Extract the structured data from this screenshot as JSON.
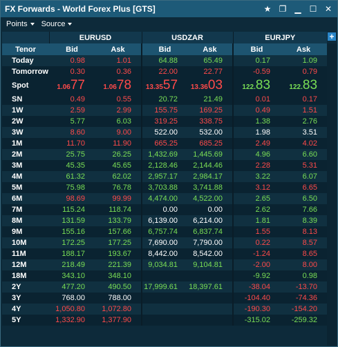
{
  "window": {
    "title": "FX Forwards - World Forex Plus [GTS]"
  },
  "toolbar": {
    "points": "Points",
    "source": "Source"
  },
  "pairs": [
    "EURUSD",
    "USDZAR",
    "EURJPY"
  ],
  "headers": {
    "tenor": "Tenor",
    "bid": "Bid",
    "ask": "Ask"
  },
  "spot": {
    "label": "Spot",
    "eurusd": {
      "bid_small": "1.06",
      "bid_big": "77",
      "ask_small": "1.06",
      "ask_big": "78"
    },
    "usdzar": {
      "bid_small": "13.35",
      "bid_big": "57",
      "ask_small": "13.36",
      "ask_big": "03"
    },
    "eurjpy": {
      "bid_small": "122.",
      "bid_big": "83",
      "ask_small": "122.",
      "ask_big": "83"
    }
  },
  "rows": [
    {
      "tenor": "Today",
      "c": [
        "0.98",
        "1.01",
        "64.88",
        "65.49",
        "0.17",
        "1.09"
      ],
      "k": [
        "r",
        "r",
        "g",
        "g",
        "g",
        "g"
      ]
    },
    {
      "tenor": "Tomorrow",
      "c": [
        "0.30",
        "0.36",
        "22.00",
        "22.77",
        "-0.59",
        "0.79"
      ],
      "k": [
        "r",
        "r",
        "r",
        "r",
        "r",
        "r"
      ]
    },
    {
      "tenor": "SN",
      "c": [
        "0.49",
        "0.55",
        "20.72",
        "21.49",
        "0.01",
        "0.17"
      ],
      "k": [
        "r",
        "r",
        "g",
        "g",
        "r",
        "r"
      ]
    },
    {
      "tenor": "1W",
      "c": [
        "2.59",
        "2.99",
        "155.75",
        "169.25",
        "0.49",
        "1.51"
      ],
      "k": [
        "r",
        "r",
        "r",
        "r",
        "r",
        "r"
      ]
    },
    {
      "tenor": "2W",
      "c": [
        "5.77",
        "6.03",
        "319.25",
        "338.75",
        "1.38",
        "2.76"
      ],
      "k": [
        "g",
        "g",
        "r",
        "r",
        "g",
        "g"
      ]
    },
    {
      "tenor": "3W",
      "c": [
        "8.60",
        "9.00",
        "522.00",
        "532.00",
        "1.98",
        "3.51"
      ],
      "k": [
        "r",
        "r",
        "w",
        "w",
        "w",
        "w"
      ]
    },
    {
      "tenor": "1M",
      "c": [
        "11.70",
        "11.90",
        "665.25",
        "685.25",
        "2.49",
        "4.02"
      ],
      "k": [
        "r",
        "r",
        "r",
        "r",
        "r",
        "r"
      ]
    },
    {
      "tenor": "2M",
      "c": [
        "25.75",
        "26.25",
        "1,432.69",
        "1,445.69",
        "4.96",
        "6.60"
      ],
      "k": [
        "g",
        "g",
        "g",
        "g",
        "g",
        "g"
      ]
    },
    {
      "tenor": "3M",
      "c": [
        "45.35",
        "45.65",
        "2,128.46",
        "2,144.46",
        "2.28",
        "5.31"
      ],
      "k": [
        "g",
        "g",
        "g",
        "g",
        "r",
        "r"
      ]
    },
    {
      "tenor": "4M",
      "c": [
        "61.32",
        "62.02",
        "2,957.17",
        "2,984.17",
        "3.22",
        "6.07"
      ],
      "k": [
        "g",
        "g",
        "g",
        "g",
        "g",
        "g"
      ]
    },
    {
      "tenor": "5M",
      "c": [
        "75.98",
        "76.78",
        "3,703.88",
        "3,741.88",
        "3.12",
        "6.65"
      ],
      "k": [
        "g",
        "g",
        "g",
        "g",
        "r",
        "r"
      ]
    },
    {
      "tenor": "6M",
      "c": [
        "98.69",
        "99.99",
        "4,474.00",
        "4,522.00",
        "2.65",
        "6.50"
      ],
      "k": [
        "r",
        "r",
        "g",
        "g",
        "g",
        "g"
      ]
    },
    {
      "tenor": "7M",
      "c": [
        "115.24",
        "118.74",
        "0.00",
        "0.00",
        "2.62",
        "7.66"
      ],
      "k": [
        "g",
        "g",
        "w",
        "w",
        "g",
        "g"
      ]
    },
    {
      "tenor": "8M",
      "c": [
        "131.59",
        "133.79",
        "6,139.00",
        "6,214.00",
        "1.81",
        "8.39"
      ],
      "k": [
        "g",
        "g",
        "w",
        "w",
        "g",
        "g"
      ]
    },
    {
      "tenor": "9M",
      "c": [
        "155.16",
        "157.66",
        "6,757.74",
        "6,837.74",
        "1.55",
        "8.13"
      ],
      "k": [
        "g",
        "g",
        "g",
        "g",
        "r",
        "r"
      ]
    },
    {
      "tenor": "10M",
      "c": [
        "172.25",
        "177.25",
        "7,690.00",
        "7,790.00",
        "0.22",
        "8.57"
      ],
      "k": [
        "g",
        "g",
        "w",
        "w",
        "r",
        "r"
      ]
    },
    {
      "tenor": "11M",
      "c": [
        "188.17",
        "193.67",
        "8,442.00",
        "8,542.00",
        "-1.24",
        "8.65"
      ],
      "k": [
        "g",
        "g",
        "w",
        "w",
        "r",
        "r"
      ]
    },
    {
      "tenor": "12M",
      "c": [
        "218.49",
        "221.39",
        "9,034.81",
        "9,104.81",
        "-2.00",
        "8.00"
      ],
      "k": [
        "g",
        "g",
        "g",
        "g",
        "r",
        "r"
      ]
    },
    {
      "tenor": "18M",
      "c": [
        "343.10",
        "348.10",
        "",
        "",
        "-9.92",
        "0.98"
      ],
      "k": [
        "g",
        "g",
        "w",
        "w",
        "g",
        "g"
      ]
    },
    {
      "tenor": "2Y",
      "c": [
        "477.20",
        "490.50",
        "17,999.61",
        "18,397.61",
        "-38.04",
        "-13.70"
      ],
      "k": [
        "g",
        "g",
        "g",
        "g",
        "r",
        "r"
      ]
    },
    {
      "tenor": "3Y",
      "c": [
        "768.00",
        "788.00",
        "",
        "",
        "-104.40",
        "-74.36"
      ],
      "k": [
        "w",
        "w",
        "w",
        "w",
        "r",
        "r"
      ]
    },
    {
      "tenor": "4Y",
      "c": [
        "1,050.80",
        "1,072.80",
        "",
        "",
        "-190.30",
        "-154.20"
      ],
      "k": [
        "r",
        "r",
        "w",
        "w",
        "r",
        "r"
      ]
    },
    {
      "tenor": "5Y",
      "c": [
        "1,332.90",
        "1,377.90",
        "",
        "",
        "-315.02",
        "-259.32"
      ],
      "k": [
        "r",
        "r",
        "w",
        "w",
        "g",
        "g"
      ]
    }
  ],
  "colors": {
    "red": "#ff4a4a",
    "green": "#7adf55",
    "titlebar": "#1d5a78",
    "header": "#1d5470"
  },
  "icons": [
    "star-icon",
    "restore-icon",
    "minimize-icon",
    "maximize-icon",
    "close-icon",
    "add-column-icon"
  ]
}
